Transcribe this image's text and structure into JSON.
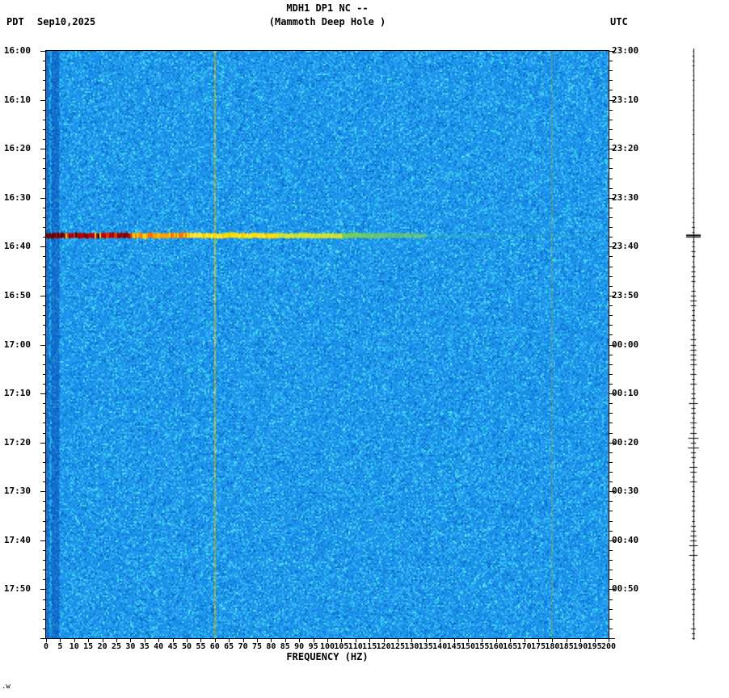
{
  "header": {
    "title": "MDH1 DP1 NC --",
    "subtitle": "(Mammoth Deep Hole )",
    "left_tz": "PDT",
    "date": "Sep10,2025",
    "right_tz": "UTC"
  },
  "x_axis": {
    "label": "FREQUENCY (HZ)",
    "min_hz": 0,
    "max_hz": 200,
    "tick_step_hz": 5,
    "ticks": [
      0,
      5,
      10,
      15,
      20,
      25,
      30,
      35,
      40,
      45,
      50,
      55,
      60,
      65,
      70,
      75,
      80,
      85,
      90,
      95,
      100,
      105,
      110,
      115,
      120,
      125,
      130,
      135,
      140,
      145,
      150,
      155,
      160,
      165,
      170,
      175,
      180,
      185,
      190,
      195,
      200
    ]
  },
  "y_axis_left": {
    "timezone": "PDT",
    "labels": [
      "16:00",
      "16:10",
      "16:20",
      "16:30",
      "16:40",
      "16:50",
      "17:00",
      "17:10",
      "17:20",
      "17:30",
      "17:40",
      "17:50"
    ],
    "minutes": [
      0,
      10,
      20,
      30,
      40,
      50,
      60,
      70,
      80,
      90,
      100,
      110
    ],
    "minor_tick_every_minutes": 2
  },
  "y_axis_right": {
    "timezone": "UTC",
    "labels": [
      "23:00",
      "23:10",
      "23:20",
      "23:30",
      "23:40",
      "23:50",
      "00:00",
      "00:10",
      "00:20",
      "00:30",
      "00:40",
      "00:50"
    ]
  },
  "chart_data": {
    "type": "heatmap",
    "title": "MDH1 DP1 NC --",
    "subtitle": "(Mammoth Deep Hole )",
    "date": "Sep10,2025",
    "xlabel": "FREQUENCY (HZ)",
    "x_range_hz": [
      0,
      200
    ],
    "time_axis": "16:00 to 18:00 PDT (23:00 to 00:50+ UTC), top to bottom",
    "time_span_minutes": 120,
    "background": "low-amplitude blue noise with cyan speckles and faint diagonal striations",
    "palette_background": [
      "#0d6fd2",
      "#168ae4",
      "#1d94ec",
      "#28a0f0",
      "#3ab4f4",
      "#2fcaf2",
      "#58dff6",
      "#2de4cf"
    ],
    "features": [
      {
        "name": "low-frequency-band",
        "description": "persistent dark-blue column with bright cyan microseism line near 1-2 Hz",
        "freq_span_hz": [
          0,
          3
        ],
        "bright_line_hz": 1.5,
        "color": "#0a55c0"
      },
      {
        "name": "mains-hum-line",
        "description": "continuous narrow yellow-green line (power-line noise)",
        "freq_hz": 60,
        "color": "#aab830"
      },
      {
        "name": "harmonic-line",
        "description": "faint continuous line (180 Hz harmonic of mains hum)",
        "freq_hz": 180,
        "color": "#8fae4a"
      },
      {
        "name": "event-band",
        "description": "strong broadband transient (likely earthquake): dark-red/red below 30 Hz, orange-yellow 30-90 Hz, fading yellow-green to ~135 Hz",
        "time_pdt": "16:38",
        "time_utc": "23:38",
        "start_minute": 37.2,
        "end_minute": 38.3,
        "freq_span_hz": [
          0,
          135
        ],
        "color_gradient": [
          "#6f0000",
          "#c00000",
          "#ff7300",
          "#ffdf00",
          "#d8e62e",
          "#7fd44d"
        ]
      }
    ]
  },
  "side_trace": {
    "description": "vertical amplitude strip: quiet at top, large spike at event time, busier minute ticks afterwards",
    "spike_minute": 37.7,
    "spike_time_pdt": "16:38",
    "spike_time_utc": "23:38"
  },
  "footer_note": ".w"
}
